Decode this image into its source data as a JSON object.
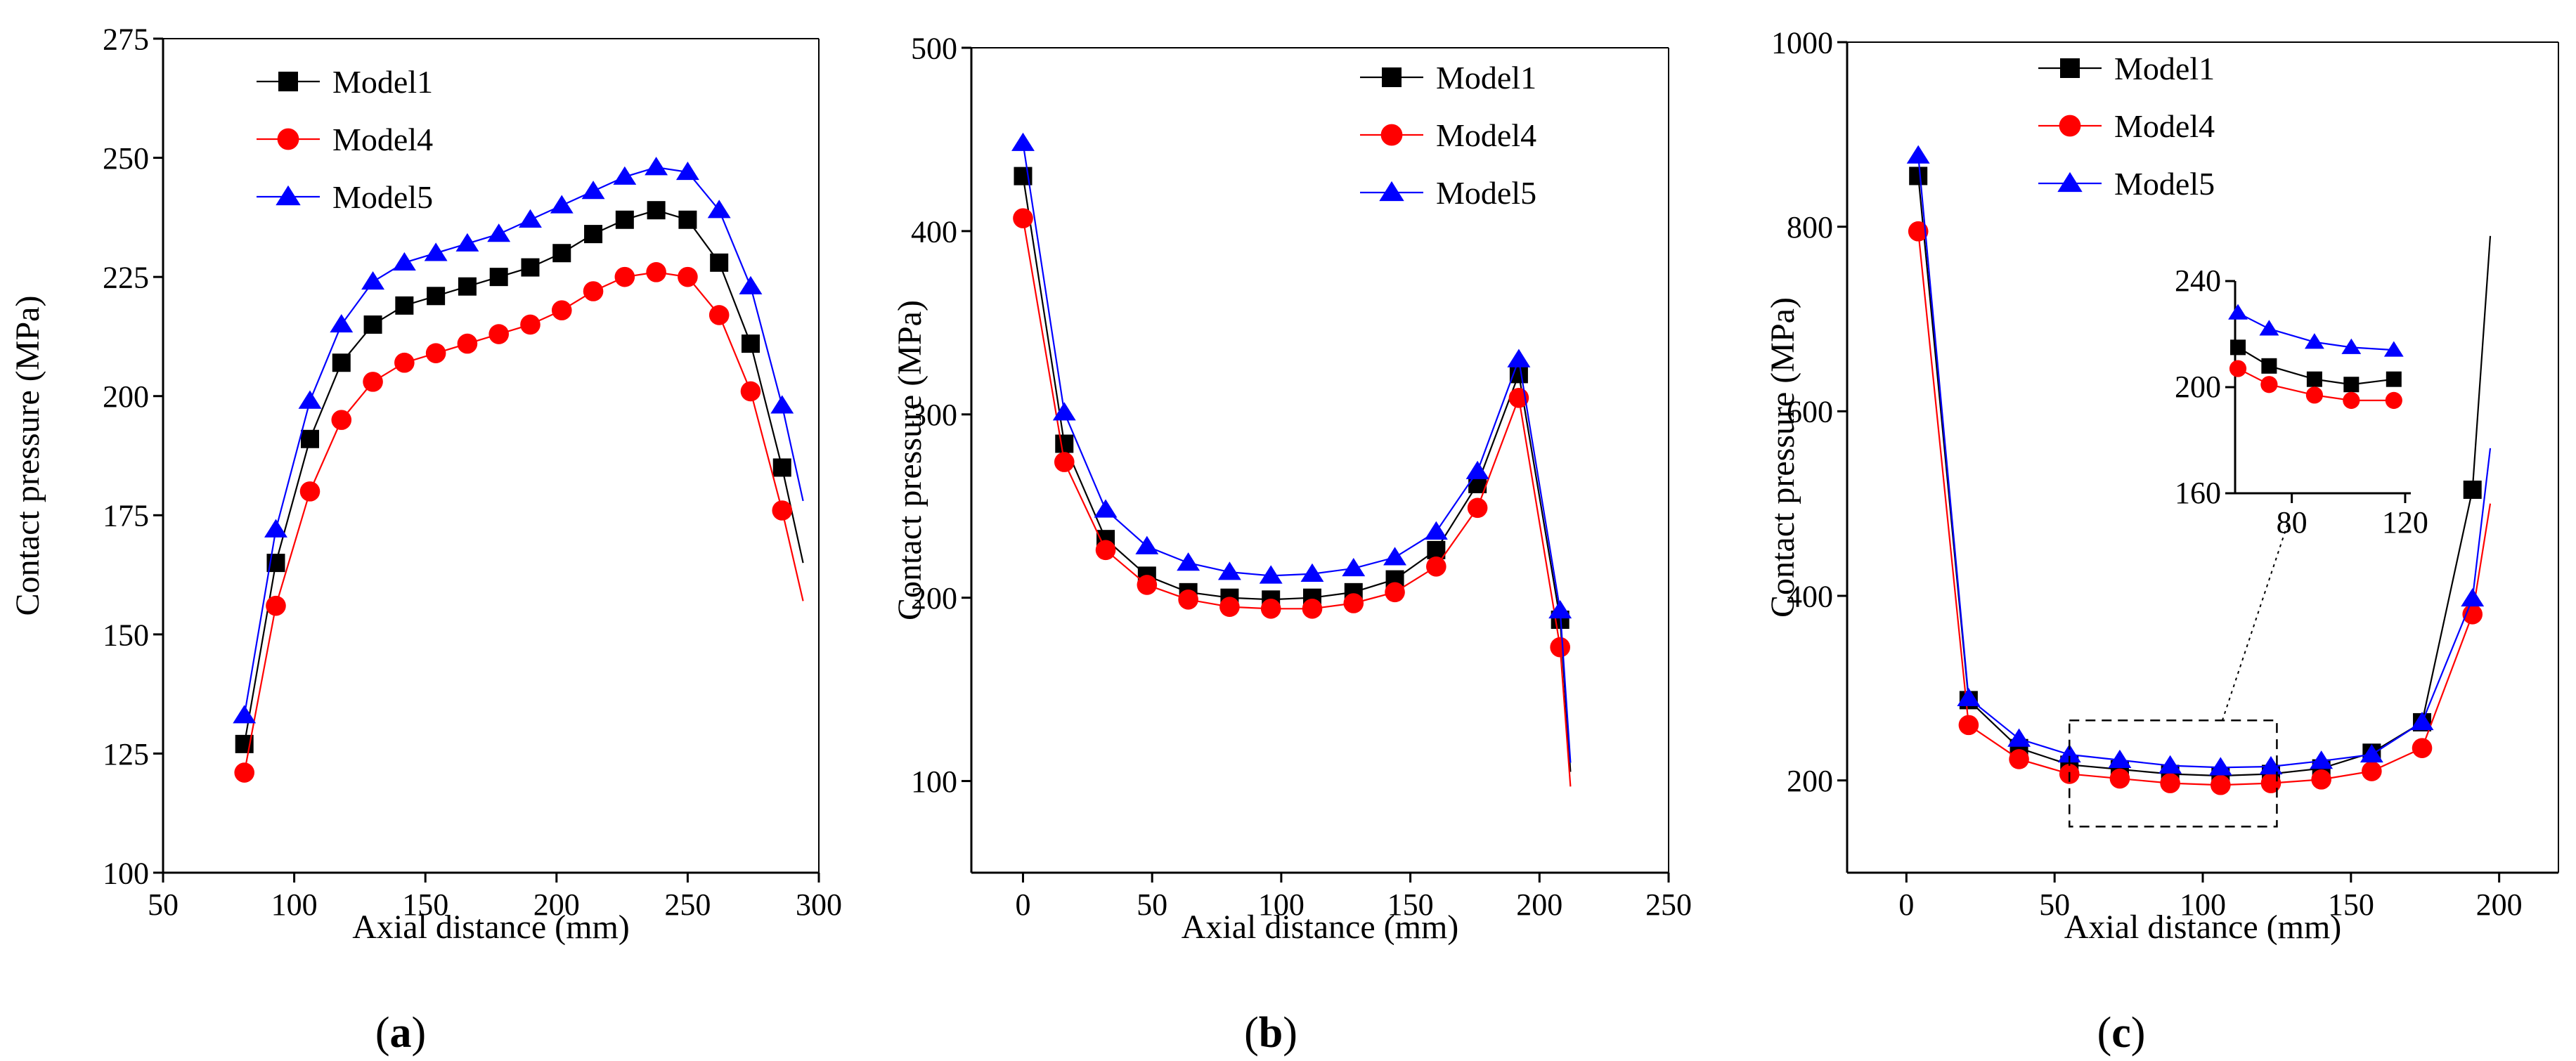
{
  "figure": {
    "panels": [
      {
        "id": "a",
        "label_open": "(",
        "label_letter": "a",
        "label_close": ")"
      },
      {
        "id": "b",
        "label_open": "(",
        "label_letter": "b",
        "label_close": ")"
      },
      {
        "id": "c",
        "label_open": "(",
        "label_letter": "c",
        "label_close": ")"
      }
    ]
  },
  "chart_data": [
    {
      "type": "line",
      "panel": "a",
      "title": "",
      "xlabel": "Axial distance (mm)",
      "ylabel": "Contact pressure (MPa)",
      "xlim": [
        50,
        300
      ],
      "ylim": [
        100,
        275
      ],
      "xticks": [
        50,
        100,
        150,
        200,
        250,
        300
      ],
      "yticks": [
        100,
        125,
        150,
        175,
        200,
        225,
        250,
        275
      ],
      "legend": "top-left",
      "series": [
        {
          "name": "Model1",
          "color": "#000000",
          "marker": "square",
          "x": [
            81,
            93,
            106,
            118,
            130,
            142,
            154,
            166,
            178,
            190,
            202,
            214,
            226,
            238,
            250,
            262,
            274,
            286
          ],
          "y": [
            127,
            165,
            191,
            207,
            215,
            219,
            221,
            223,
            225,
            227,
            230,
            234,
            237,
            239,
            237,
            228,
            211,
            185
          ],
          "line_end": [
            294,
            165
          ]
        },
        {
          "name": "Model4",
          "color": "#ff0000",
          "marker": "circle",
          "x": [
            81,
            93,
            106,
            118,
            130,
            142,
            154,
            166,
            178,
            190,
            202,
            214,
            226,
            238,
            250,
            262,
            274,
            286
          ],
          "y": [
            121,
            156,
            180,
            195,
            203,
            207,
            209,
            211,
            213,
            215,
            218,
            222,
            225,
            226,
            225,
            217,
            201,
            176
          ],
          "line_end": [
            294,
            157
          ]
        },
        {
          "name": "Model5",
          "color": "#0000ff",
          "marker": "triangle",
          "x": [
            81,
            93,
            106,
            118,
            130,
            142,
            154,
            166,
            178,
            190,
            202,
            214,
            226,
            238,
            250,
            262,
            274,
            286
          ],
          "y": [
            133,
            172,
            199,
            215,
            224,
            228,
            230,
            232,
            234,
            237,
            240,
            243,
            246,
            248,
            247,
            239,
            223,
            198
          ],
          "line_end": [
            294,
            178
          ]
        }
      ]
    },
    {
      "type": "line",
      "panel": "b",
      "title": "",
      "xlabel": "Axial distance (mm)",
      "ylabel": "Contact pressure (MPa)",
      "xlim": [
        -20,
        250
      ],
      "ylim": [
        50,
        500
      ],
      "xticks": [
        0,
        50,
        100,
        150,
        200,
        250
      ],
      "yticks": [
        100,
        200,
        300,
        400,
        500
      ],
      "legend": "top-right",
      "series": [
        {
          "name": "Model1",
          "color": "#000000",
          "marker": "square",
          "x": [
            0,
            16,
            32,
            48,
            64,
            80,
            96,
            112,
            128,
            144,
            160,
            176,
            192,
            208
          ],
          "y": [
            430,
            284,
            232,
            212,
            203,
            200,
            199,
            200,
            203,
            210,
            226,
            262,
            322,
            188
          ],
          "line_end": [
            212,
            105
          ]
        },
        {
          "name": "Model4",
          "color": "#ff0000",
          "marker": "circle",
          "x": [
            0,
            16,
            32,
            48,
            64,
            80,
            96,
            112,
            128,
            144,
            160,
            176,
            192,
            208
          ],
          "y": [
            407,
            274,
            226,
            207,
            199,
            195,
            194,
            194,
            197,
            203,
            217,
            249,
            309,
            173
          ],
          "line_end": [
            212,
            97
          ]
        },
        {
          "name": "Model5",
          "color": "#0000ff",
          "marker": "triangle",
          "x": [
            0,
            16,
            32,
            48,
            64,
            80,
            96,
            112,
            128,
            144,
            160,
            176,
            192,
            208
          ],
          "y": [
            448,
            301,
            248,
            228,
            219,
            214,
            212,
            213,
            216,
            222,
            236,
            269,
            330,
            193
          ],
          "line_end": [
            212,
            110
          ]
        }
      ]
    },
    {
      "type": "line",
      "panel": "c",
      "title": "",
      "xlabel": "Axial distance (mm)",
      "ylabel": "Contact pressure (MPa)",
      "xlim": [
        -20,
        220
      ],
      "ylim": [
        100,
        1000
      ],
      "xticks": [
        0,
        50,
        100,
        150,
        200
      ],
      "yticks": [
        200,
        400,
        600,
        800,
        1000
      ],
      "legend": "top-left",
      "series": [
        {
          "name": "Model1",
          "color": "#000000",
          "marker": "square",
          "x": [
            4,
            21,
            38,
            55,
            72,
            89,
            106,
            123,
            140,
            157,
            174,
            191
          ],
          "y": [
            855,
            287,
            235,
            217,
            212,
            207,
            205,
            207,
            213,
            230,
            263,
            515
          ],
          "line_end": [
            197,
            790
          ]
        },
        {
          "name": "Model4",
          "color": "#ff0000",
          "marker": "circle",
          "x": [
            4,
            21,
            38,
            55,
            72,
            89,
            106,
            123,
            140,
            157,
            174,
            191
          ],
          "y": [
            795,
            260,
            223,
            207,
            202,
            197,
            195,
            197,
            201,
            210,
            235,
            380
          ],
          "line_end": [
            197,
            500
          ]
        },
        {
          "name": "Model5",
          "color": "#0000ff",
          "marker": "triangle",
          "x": [
            4,
            21,
            38,
            55,
            72,
            89,
            106,
            123,
            140,
            157,
            174,
            191
          ],
          "y": [
            877,
            289,
            245,
            228,
            222,
            216,
            214,
            215,
            221,
            228,
            263,
            397
          ],
          "line_end": [
            197,
            560
          ]
        }
      ],
      "zoom_region": {
        "x": [
          55,
          125
        ],
        "y": [
          150,
          265
        ]
      }
    },
    {
      "type": "line",
      "panel": "c-inset",
      "title": "",
      "xlabel": "",
      "ylabel": "",
      "xlim": [
        60,
        122
      ],
      "ylim": [
        160,
        240
      ],
      "xticks": [
        80,
        120
      ],
      "yticks": [
        160,
        200,
        240
      ],
      "legend": "none",
      "series": [
        {
          "name": "Model1",
          "color": "#000000",
          "marker": "square",
          "x": [
            61,
            72,
            88,
            101,
            116
          ],
          "y": [
            215,
            208,
            203,
            201,
            203
          ]
        },
        {
          "name": "Model4",
          "color": "#ff0000",
          "marker": "circle",
          "x": [
            61,
            72,
            88,
            101,
            116
          ],
          "y": [
            207,
            201,
            197,
            195,
            195
          ]
        },
        {
          "name": "Model5",
          "color": "#0000ff",
          "marker": "triangle",
          "x": [
            61,
            72,
            88,
            101,
            116
          ],
          "y": [
            228,
            222,
            217,
            215,
            214
          ]
        }
      ]
    }
  ]
}
